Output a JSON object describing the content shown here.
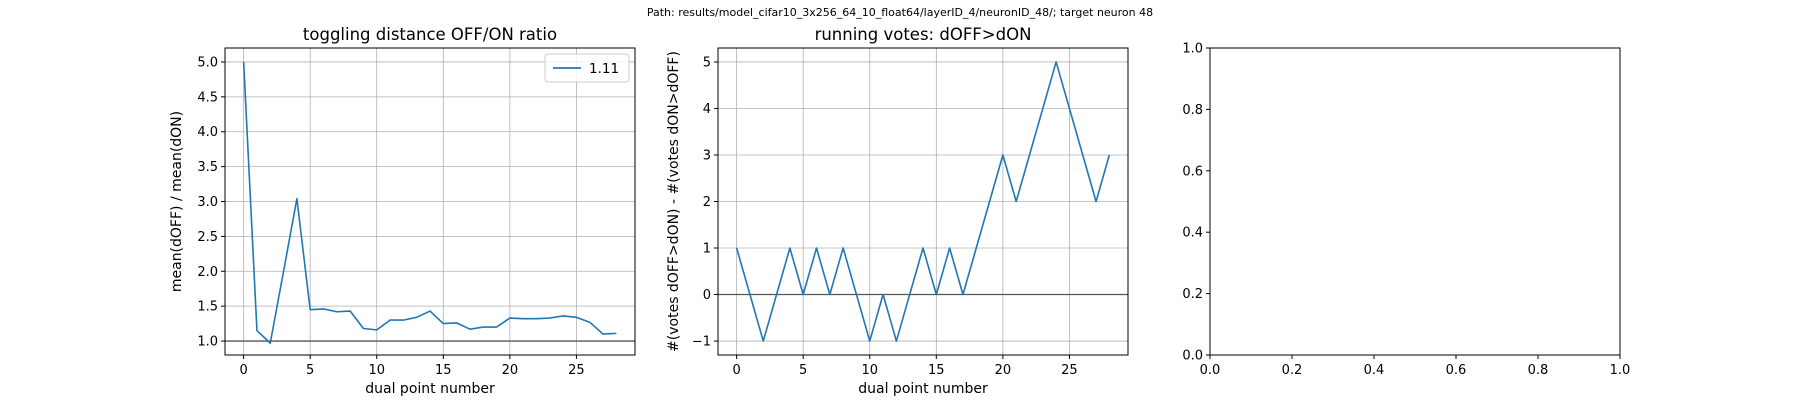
{
  "figure": {
    "suptitle": "Path: results/model_cifar10_3x256_64_10_float64/layerID_4/neuronID_48/; target neuron 48"
  },
  "chart_data": [
    {
      "type": "line",
      "title": "toggling distance OFF/ON ratio",
      "xlabel": "dual point number",
      "ylabel": "mean(dOFF) / mean(dON)",
      "xlim": [
        -1.4,
        29.4
      ],
      "ylim": [
        0.8,
        5.2
      ],
      "xticks": [
        0,
        5,
        10,
        15,
        20,
        25
      ],
      "xtick_labels": [
        "0",
        "5",
        "10",
        "15",
        "20",
        "25"
      ],
      "yticks": [
        1.0,
        1.5,
        2.0,
        2.5,
        3.0,
        3.5,
        4.0,
        4.5,
        5.0
      ],
      "ytick_labels": [
        "1.0",
        "1.5",
        "2.0",
        "2.5",
        "3.0",
        "3.5",
        "4.0",
        "4.5",
        "5.0"
      ],
      "grid": true,
      "reference_line": 1.0,
      "legend": {
        "placement": "upper right",
        "entries": [
          "1.11"
        ]
      },
      "series": [
        {
          "name": "1.11",
          "color": "#1f77b4",
          "x": [
            0,
            1,
            2,
            3,
            4,
            5,
            6,
            7,
            8,
            9,
            10,
            11,
            12,
            13,
            14,
            15,
            16,
            17,
            18,
            19,
            20,
            21,
            22,
            23,
            24,
            25,
            26,
            27,
            28
          ],
          "y": [
            5.0,
            1.15,
            0.97,
            2.0,
            3.04,
            1.45,
            1.46,
            1.42,
            1.43,
            1.18,
            1.16,
            1.3,
            1.3,
            1.34,
            1.43,
            1.25,
            1.26,
            1.17,
            1.2,
            1.2,
            1.33,
            1.32,
            1.32,
            1.33,
            1.36,
            1.34,
            1.27,
            1.1,
            1.11
          ]
        }
      ]
    },
    {
      "type": "line",
      "title": "running votes: dOFF>dON",
      "xlabel": "dual point number",
      "ylabel": "#(votes dOFF>dON) - #(votes dON>dOFF)",
      "xlim": [
        -1.4,
        29.4
      ],
      "ylim": [
        -1.3,
        5.3
      ],
      "xticks": [
        0,
        5,
        10,
        15,
        20,
        25
      ],
      "xtick_labels": [
        "0",
        "5",
        "10",
        "15",
        "20",
        "25"
      ],
      "yticks": [
        -1,
        0,
        1,
        2,
        3,
        4,
        5
      ],
      "ytick_labels": [
        "−1",
        "0",
        "1",
        "2",
        "3",
        "4",
        "5"
      ],
      "grid": true,
      "reference_line": 0,
      "series": [
        {
          "color": "#1f77b4",
          "x": [
            0,
            1,
            2,
            3,
            4,
            5,
            6,
            7,
            8,
            9,
            10,
            11,
            12,
            13,
            14,
            15,
            16,
            17,
            18,
            19,
            20,
            21,
            22,
            23,
            24,
            25,
            26,
            27,
            28
          ],
          "y": [
            1,
            0,
            -1,
            0,
            1,
            0,
            1,
            0,
            1,
            0,
            -1,
            0,
            -1,
            0,
            1,
            0,
            1,
            0,
            1,
            2,
            3,
            2,
            3,
            4,
            5,
            4,
            3,
            2,
            3
          ]
        }
      ]
    },
    {
      "type": "line",
      "title": "",
      "xlabel": "",
      "ylabel": "",
      "xlim": [
        0.0,
        1.0
      ],
      "ylim": [
        0.0,
        1.0
      ],
      "xticks": [
        0.0,
        0.2,
        0.4,
        0.6,
        0.8,
        1.0
      ],
      "xtick_labels": [
        "0.0",
        "0.2",
        "0.4",
        "0.6",
        "0.8",
        "1.0"
      ],
      "yticks": [
        0.0,
        0.2,
        0.4,
        0.6,
        0.8,
        1.0
      ],
      "ytick_labels": [
        "0.0",
        "0.2",
        "0.4",
        "0.6",
        "0.8",
        "1.0"
      ],
      "grid": false,
      "series": []
    }
  ]
}
